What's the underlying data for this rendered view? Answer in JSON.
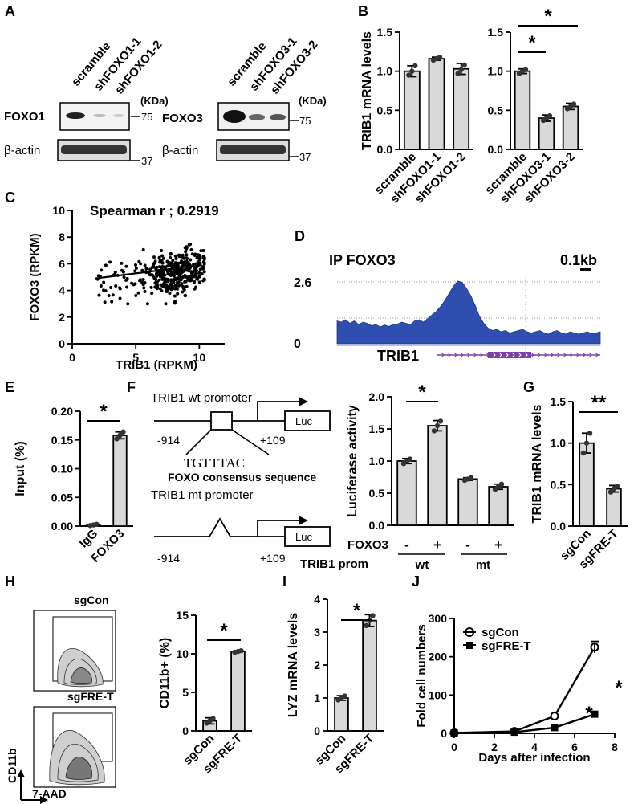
{
  "panel_labels": {
    "a": "A",
    "b": "B",
    "c": "C",
    "d": "D",
    "e": "E",
    "f": "F",
    "g": "G",
    "h": "H",
    "i": "I",
    "j": "J"
  },
  "western": {
    "left_lanes": [
      "scramble",
      "shFOXO1-1",
      "shFOXO1-2"
    ],
    "right_lanes": [
      "scramble",
      "shFOXO3-1",
      "shFOXO3-2"
    ],
    "kda": "(KDa)",
    "foxo1": "FOXO1",
    "foxo3": "FOXO3",
    "actin": "β-actin",
    "mw75": "75",
    "mw37": "37"
  },
  "chart_data": [
    {
      "panel": "B-left",
      "type": "bar",
      "ylabel": "TRIB1 mRNA levels",
      "categories": [
        "scramble",
        "shFOXO1-1",
        "shFOXO1-2"
      ],
      "values": [
        1.0,
        1.16,
        1.03
      ],
      "errors": [
        0.07,
        0.02,
        0.07
      ],
      "points": [
        [
          0.95,
          1.0,
          1.07
        ],
        [
          1.14,
          1.16,
          1.18
        ],
        [
          0.97,
          1.02,
          1.08
        ]
      ],
      "ylim": [
        0,
        1.5
      ],
      "ticks": [
        "0.0",
        "0.5",
        "1.0",
        "1.5"
      ]
    },
    {
      "panel": "B-right",
      "type": "bar",
      "categories": [
        "scramble",
        "shFOXO3-1",
        "shFOXO3-2"
      ],
      "values": [
        1.0,
        0.4,
        0.55
      ],
      "errors": [
        0.03,
        0.04,
        0.04
      ],
      "points": [
        [
          0.97,
          1.0,
          1.02
        ],
        [
          0.37,
          0.4,
          0.43
        ],
        [
          0.52,
          0.55,
          0.58
        ]
      ],
      "ylim": [
        0,
        1.5
      ],
      "ticks": [
        "0.0",
        "0.5",
        "1.0",
        "1.5"
      ],
      "sig": [
        "*",
        "*"
      ]
    },
    {
      "panel": "C",
      "type": "scatter",
      "title": "Spearman r ; 0.2919",
      "xlabel": "TRIB1 (RPKM)",
      "ylabel": "FOXO3 (RPKM)",
      "xlim": [
        0,
        12
      ],
      "ylim": [
        0,
        10
      ],
      "xticks": [
        "0",
        "5",
        "10"
      ],
      "yticks": [
        "0",
        "2",
        "4",
        "6",
        "8",
        "10"
      ],
      "fit": {
        "x0": 1.8,
        "y0": 4.9,
        "x1": 10.2,
        "y1": 5.9
      },
      "n_points": 420,
      "seed": 11
    },
    {
      "panel": "D",
      "type": "area",
      "title": "IP FOXO3",
      "scale": "0.1kb",
      "ymax_label": "2.6",
      "ymin_label": "0",
      "gene": "TRIB1",
      "signal": [
        0.95,
        0.9,
        1.0,
        0.85,
        0.95,
        0.8,
        0.9,
        0.85,
        0.75,
        0.8,
        0.7,
        0.78,
        0.72,
        0.8,
        0.82,
        0.9,
        0.85,
        0.8,
        0.95,
        1.0,
        0.9,
        1.05,
        1.2,
        1.35,
        1.55,
        1.8,
        2.1,
        2.4,
        2.6,
        2.55,
        2.3,
        2.0,
        1.6,
        1.15,
        0.85,
        0.65,
        0.55,
        0.6,
        0.5,
        0.55,
        0.45,
        0.5,
        0.55,
        0.6,
        0.5,
        0.45,
        0.5,
        0.55,
        0.45,
        0.4,
        0.5,
        0.55,
        0.45,
        0.4,
        0.5,
        0.45,
        0.4,
        0.45,
        0.5,
        0.42,
        0.45,
        0.5
      ]
    },
    {
      "panel": "E",
      "type": "bar",
      "ylabel": "Input (%)",
      "categories": [
        "IgG",
        "FOXO3"
      ],
      "values": [
        0.002,
        0.158
      ],
      "errors": [
        0.001,
        0.006
      ],
      "points": [
        [
          0.001,
          0.002,
          0.003
        ],
        [
          0.152,
          0.158,
          0.164
        ]
      ],
      "ylim": [
        0,
        0.2
      ],
      "ticks": [
        "0.00",
        "0.05",
        "0.10",
        "0.15",
        "0.20"
      ],
      "sig": [
        "*"
      ]
    },
    {
      "panel": "F",
      "type": "bar",
      "ylabel": "Luciferase activity",
      "categories": [
        "wt -",
        "wt +",
        "mt -",
        "mt +"
      ],
      "values": [
        1.0,
        1.55,
        0.72,
        0.6
      ],
      "errors": [
        0.04,
        0.08,
        0.02,
        0.04
      ],
      "points": [
        [
          0.96,
          1.0,
          1.03
        ],
        [
          1.47,
          1.55,
          1.62
        ],
        [
          0.7,
          0.72,
          0.74
        ],
        [
          0.56,
          0.6,
          0.64
        ]
      ],
      "ylim": [
        0,
        2.0
      ],
      "ticks": [
        "0.0",
        "0.5",
        "1.0",
        "1.5",
        "2.0"
      ],
      "sig": [
        "*"
      ],
      "foxo3_row": [
        "-",
        "+",
        "-",
        "+"
      ],
      "prom_groups": [
        "wt",
        "mt"
      ]
    },
    {
      "panel": "G",
      "type": "bar",
      "ylabel": "TRIB1 mRNA levels",
      "categories": [
        "sgCon",
        "sgFRE-T"
      ],
      "values": [
        1.0,
        0.45
      ],
      "errors": [
        0.12,
        0.04
      ],
      "points": [
        [
          0.88,
          1.0,
          1.12
        ],
        [
          0.41,
          0.45,
          0.48
        ]
      ],
      "ylim": [
        0,
        1.5
      ],
      "ticks": [
        "0.0",
        "0.5",
        "1.0",
        "1.5"
      ],
      "sig": [
        "**"
      ]
    },
    {
      "panel": "H",
      "type": "bar",
      "ylabel": "CD11b+ (%)",
      "categories": [
        "sgCon",
        "sgFRE-T"
      ],
      "values": [
        1.3,
        10.3
      ],
      "errors": [
        0.4,
        0.1
      ],
      "points": [
        [
          1.0,
          1.3,
          1.6
        ],
        [
          10.2,
          10.3,
          10.4
        ]
      ],
      "ylim": [
        0,
        15
      ],
      "ticks": [
        "0",
        "5",
        "10",
        "15"
      ],
      "sig": [
        "*"
      ]
    },
    {
      "panel": "I",
      "type": "bar",
      "ylabel": "LYZ mRNA levels",
      "categories": [
        "sgCon",
        "sgFRE-T"
      ],
      "values": [
        1.0,
        3.35
      ],
      "errors": [
        0.07,
        0.18
      ],
      "points": [
        [
          0.94,
          1.0,
          1.06
        ],
        [
          3.2,
          3.35,
          3.5
        ]
      ],
      "ylim": [
        0,
        4
      ],
      "ticks": [
        "0",
        "1",
        "2",
        "3",
        "4"
      ],
      "sig": [
        "*"
      ]
    },
    {
      "panel": "J",
      "type": "line",
      "xlabel": "Days after infection",
      "ylabel": "Fold cell numbers",
      "x": [
        0,
        3,
        5,
        7
      ],
      "series": [
        {
          "name": "sgCon",
          "values": [
            1,
            5,
            45,
            225
          ]
        },
        {
          "name": "sgFRE-T",
          "values": [
            1,
            3,
            15,
            50
          ]
        }
      ],
      "xlim": [
        0,
        8
      ],
      "ylim": [
        0,
        300
      ],
      "xticks": [
        "0",
        "2",
        "4",
        "6",
        "8"
      ],
      "yticks": [
        "0",
        "100",
        "200",
        "300"
      ],
      "sig": [
        "*",
        "*"
      ]
    }
  ],
  "promoter": {
    "wt_label": "TRIB1 wt promoter",
    "mt_label": "TRIB1 mt promoter",
    "luc": "Luc",
    "start": "-914",
    "end": "+109",
    "motif": "TGTTTAC",
    "consensus": "FOXO consensus sequence",
    "foxo3_label": "FOXO3",
    "prom_label": "TRIB1 prom"
  },
  "flow": {
    "top": "sgCon",
    "bottom": "sgFRE-T",
    "ylabel": "CD11b",
    "xlabel": "7-AAD"
  }
}
